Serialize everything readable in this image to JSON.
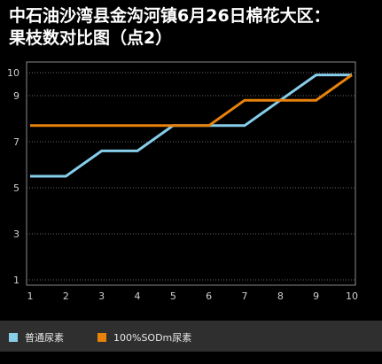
{
  "title_lines": [
    "中石油沙湾县金沟河镇6月26日棉花大区：",
    "果枝数对比图（点2）"
  ],
  "chart_data": {
    "type": "line",
    "title": "中石油沙湾县金沟河镇6月26日棉花大区：果枝数对比图（点2）",
    "x": [
      1,
      2,
      3,
      4,
      5,
      6,
      7,
      8,
      9,
      10
    ],
    "x_tick_labels": [
      "1",
      "2",
      "3",
      "4",
      "5",
      "6",
      "7",
      "8",
      "9",
      "10"
    ],
    "y_tick_labels": [
      "1",
      "3",
      "5",
      "7",
      "9",
      "10"
    ],
    "y_ticks": [
      1,
      3,
      5,
      7,
      9,
      10
    ],
    "ylim": [
      1,
      10
    ],
    "xlim": [
      1,
      10
    ],
    "grid": "horizontal dotted",
    "legend_position": "bottom",
    "series": [
      {
        "name": "普通尿素",
        "color": "#87ceeb",
        "values": [
          5.5,
          5.5,
          6.6,
          6.6,
          7.7,
          7.7,
          7.7,
          8.8,
          9.9,
          9.9
        ]
      },
      {
        "name": "100%SODm尿素",
        "color": "#e8820c",
        "values": [
          7.7,
          7.7,
          7.7,
          7.7,
          7.7,
          7.7,
          8.8,
          8.8,
          8.8,
          9.9
        ]
      }
    ]
  }
}
